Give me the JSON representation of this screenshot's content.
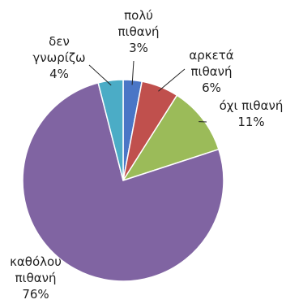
{
  "chart_data": {
    "type": "pie",
    "slices": [
      {
        "label_lines": [
          "πολύ",
          "πιθανή"
        ],
        "percent_label": "3%",
        "value": 3,
        "color": "#4a76c6"
      },
      {
        "label_lines": [
          "αρκετά",
          "πιθανή"
        ],
        "percent_label": "6%",
        "value": 6,
        "color": "#c0504d"
      },
      {
        "label_lines": [
          "όχι πιθανή"
        ],
        "percent_label": "11%",
        "value": 11,
        "color": "#9bbb59"
      },
      {
        "label_lines": [
          "καθόλου",
          "πιθανή"
        ],
        "percent_label": "76%",
        "value": 76,
        "color": "#8064a2"
      },
      {
        "label_lines": [
          "δεν",
          "γνωρίζω"
        ],
        "percent_label": "4%",
        "value": 4,
        "color": "#4bacc6"
      }
    ],
    "start_angle_deg": 0,
    "direction": "clockwise",
    "legend": "none"
  }
}
